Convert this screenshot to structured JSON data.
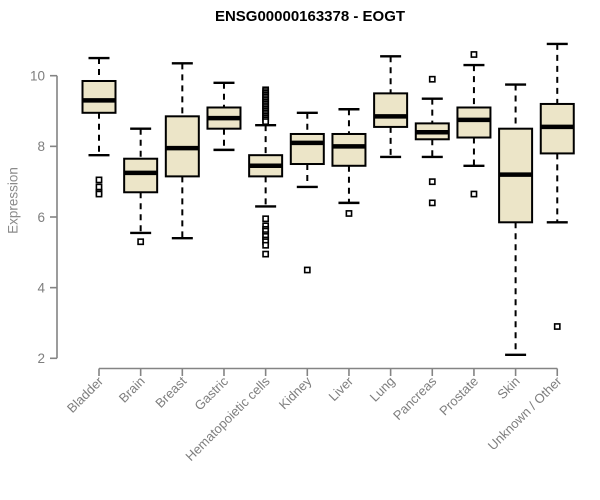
{
  "chart_data": {
    "type": "boxplot",
    "title": "ENSG00000163378 - EOGT",
    "ylabel": "Expression",
    "xlabel": "",
    "y_ticks": [
      2,
      4,
      6,
      8,
      10
    ],
    "ylim": [
      2,
      11
    ],
    "grid": false,
    "legend": "none",
    "whisker_style": "dashed",
    "outlier_marker": "open-square",
    "categories": [
      "Bladder",
      "Brain",
      "Breast",
      "Gastric",
      "Hematopoietic cells",
      "Kidney",
      "Liver",
      "Lung",
      "Pancreas",
      "Prostate",
      "Skin",
      "Unknown / Other"
    ],
    "series": [
      {
        "name": "Bladder",
        "low": 7.75,
        "q1": 8.95,
        "median": 9.3,
        "q3": 9.85,
        "high": 10.5,
        "outliers": [
          7.05,
          6.85,
          6.7,
          6.65
        ]
      },
      {
        "name": "Brain",
        "low": 5.55,
        "q1": 6.7,
        "median": 7.25,
        "q3": 7.65,
        "high": 8.5,
        "outliers": [
          5.3
        ]
      },
      {
        "name": "Breast",
        "low": 5.4,
        "q1": 7.15,
        "median": 7.95,
        "q3": 8.85,
        "high": 10.35,
        "outliers": []
      },
      {
        "name": "Gastric",
        "low": 7.9,
        "q1": 8.5,
        "median": 8.8,
        "q3": 9.1,
        "high": 9.8,
        "outliers": []
      },
      {
        "name": "Hematopoietic cells",
        "low": 6.3,
        "q1": 7.15,
        "median": 7.45,
        "q3": 7.75,
        "high": 8.6,
        "outliers": [
          9.6,
          9.55,
          9.5,
          9.45,
          9.4,
          9.35,
          9.3,
          9.25,
          9.2,
          9.15,
          9.1,
          9.05,
          9.0,
          8.95,
          8.9,
          8.85,
          8.8,
          8.75,
          8.7,
          5.95,
          5.75,
          5.65,
          5.6,
          5.5,
          5.45,
          5.35,
          5.3,
          5.2,
          4.95
        ]
      },
      {
        "name": "Kidney",
        "low": 6.85,
        "q1": 7.5,
        "median": 8.1,
        "q3": 8.35,
        "high": 8.95,
        "outliers": [
          4.5
        ]
      },
      {
        "name": "Liver",
        "low": 6.4,
        "q1": 7.45,
        "median": 8.0,
        "q3": 8.35,
        "high": 9.05,
        "outliers": [
          6.1
        ]
      },
      {
        "name": "Lung",
        "low": 7.7,
        "q1": 8.55,
        "median": 8.85,
        "q3": 9.5,
        "high": 10.55,
        "outliers": []
      },
      {
        "name": "Pancreas",
        "low": 7.7,
        "q1": 8.2,
        "median": 8.4,
        "q3": 8.65,
        "high": 9.35,
        "outliers": [
          9.9,
          7.0,
          6.4
        ]
      },
      {
        "name": "Prostate",
        "low": 7.45,
        "q1": 8.25,
        "median": 8.75,
        "q3": 9.1,
        "high": 10.3,
        "outliers": [
          10.6,
          6.65
        ]
      },
      {
        "name": "Skin",
        "low": 2.1,
        "q1": 5.85,
        "median": 7.2,
        "q3": 8.5,
        "high": 9.75,
        "outliers": []
      },
      {
        "name": "Unknown / Other",
        "low": 5.85,
        "q1": 7.8,
        "median": 8.55,
        "q3": 9.2,
        "high": 10.9,
        "outliers": [
          2.9
        ]
      }
    ]
  },
  "colors": {
    "box_fill": "#ece5c8",
    "box_border": "#000000",
    "median": "#000000",
    "whisker": "#000000",
    "axis": "#848484",
    "tick_label": "#7e7e7e",
    "title": "#000000",
    "ylabel": "#8a8a8a",
    "background": "#ffffff"
  }
}
